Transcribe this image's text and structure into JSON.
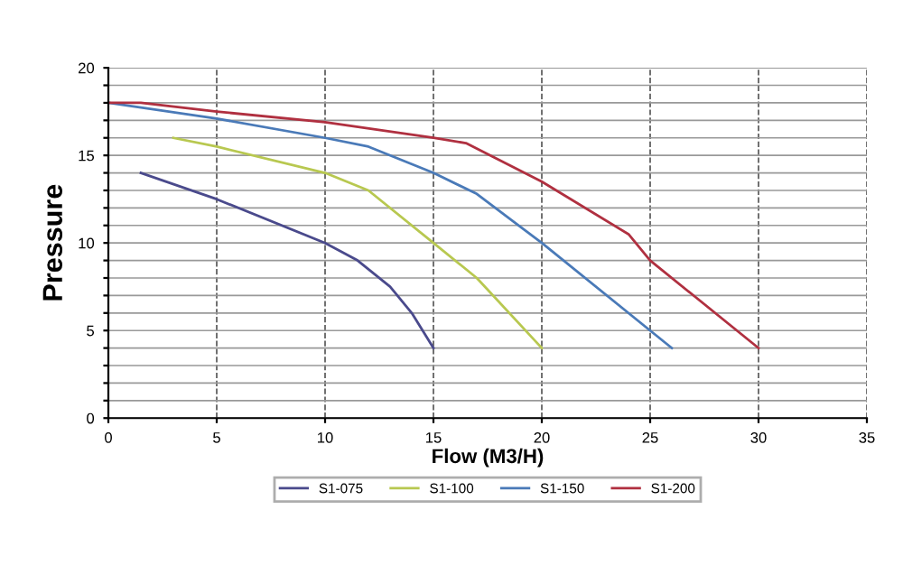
{
  "chart_data": {
    "type": "line",
    "xlabel": "Flow (M3/H)",
    "ylabel": "Pressure",
    "series": [
      {
        "name": "S1-075",
        "color": "#4a4a8c",
        "x": [
          1.5,
          5,
          10,
          11.5,
          13,
          14,
          15
        ],
        "values": [
          14,
          12.5,
          10,
          9,
          7.5,
          6,
          4
        ]
      },
      {
        "name": "S1-100",
        "color": "#b8c850",
        "x": [
          3,
          5,
          10,
          12,
          15,
          17,
          20
        ],
        "values": [
          16,
          15.5,
          14,
          13,
          10,
          8,
          4
        ]
      },
      {
        "name": "S1-150",
        "color": "#4a7ab8",
        "x": [
          0,
          5,
          10,
          12,
          15,
          17,
          20,
          25,
          26
        ],
        "values": [
          18,
          17.1,
          16,
          15.5,
          14,
          12.8,
          10,
          5,
          4
        ]
      },
      {
        "name": "S1-200",
        "color": "#b03040",
        "x": [
          0,
          1.5,
          5,
          10,
          15,
          16.5,
          20,
          24,
          25,
          30
        ],
        "values": [
          18,
          18,
          17.5,
          16.9,
          16,
          15.7,
          13.5,
          10.5,
          9,
          4
        ]
      }
    ],
    "xlim": [
      0,
      35
    ],
    "xticks": [
      0,
      5,
      10,
      15,
      20,
      25,
      30,
      35
    ],
    "ylim": [
      0,
      20
    ],
    "yticks": [
      0,
      {
        "value": 1,
        "label": null
      },
      {
        "value": 2,
        "label": null
      },
      {
        "value": 3,
        "label": null
      },
      {
        "value": 4,
        "label": null
      },
      5,
      {
        "value": 6,
        "label": null
      },
      {
        "value": 7,
        "label": null
      },
      {
        "value": 8,
        "label": null
      },
      {
        "value": 9,
        "label": null
      },
      10,
      {
        "value": 11,
        "label": null
      },
      {
        "value": 12,
        "label": null
      },
      {
        "value": 13,
        "label": null
      },
      {
        "value": 14,
        "label": null
      },
      15,
      {
        "value": 16,
        "label": null
      },
      {
        "value": 17,
        "label": null
      },
      {
        "value": 18,
        "label": null
      },
      {
        "value": 19,
        "label": null
      },
      20
    ],
    "grid": true,
    "legend": "bottom",
    "line_style": "solid",
    "marker": "none"
  }
}
